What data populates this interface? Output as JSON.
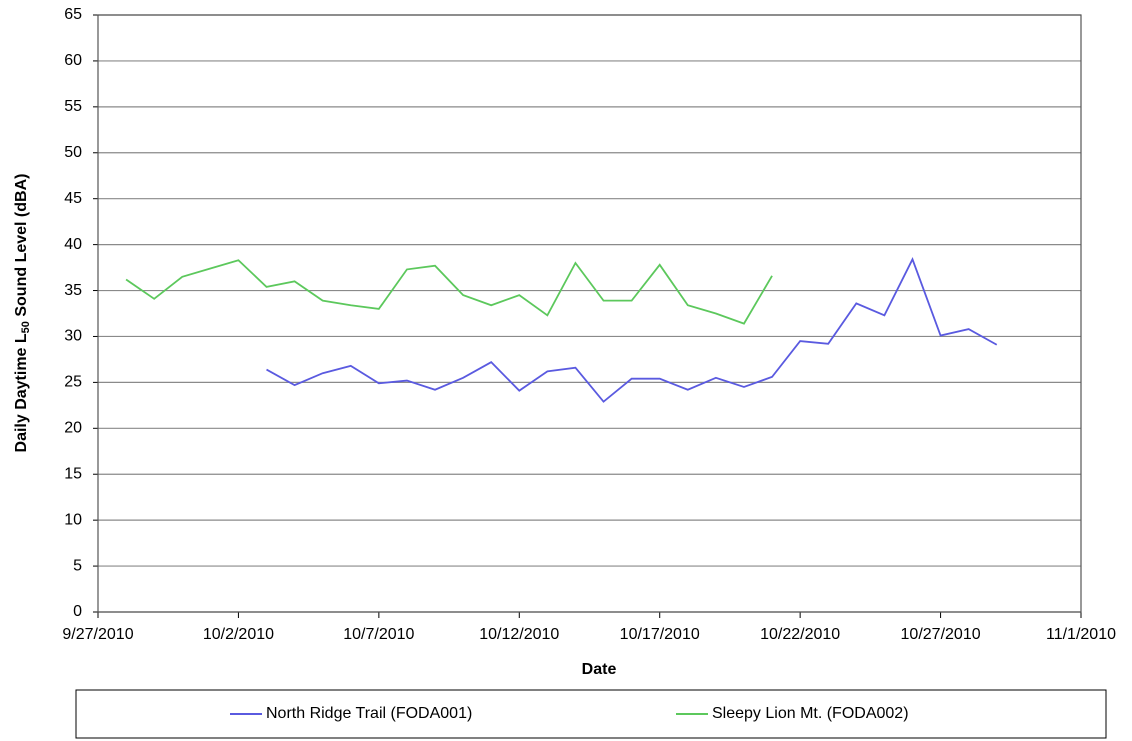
{
  "chart_data": {
    "type": "line",
    "x_label": "Date",
    "y_label_parts": [
      "Daily Daytime L",
      "50",
      " Sound Level (dBA)"
    ],
    "xlim": [
      "9/27/2010",
      "11/1/2010"
    ],
    "xticks": [
      "9/27/2010",
      "10/2/2010",
      "10/7/2010",
      "10/12/2010",
      "10/17/2010",
      "10/22/2010",
      "10/27/2010",
      "11/1/2010"
    ],
    "ylim": [
      0,
      65
    ],
    "yticks": [
      0,
      5,
      10,
      15,
      20,
      25,
      30,
      35,
      40,
      45,
      50,
      55,
      60,
      65
    ],
    "grid": true,
    "legend": "bottom",
    "series": [
      {
        "name": "North Ridge Trail (FODA001)",
        "color": "#5a5ae0",
        "x": [
          "10/3/2010",
          "10/4/2010",
          "10/5/2010",
          "10/6/2010",
          "10/7/2010",
          "10/8/2010",
          "10/9/2010",
          "10/10/2010",
          "10/11/2010",
          "10/12/2010",
          "10/13/2010",
          "10/14/2010",
          "10/15/2010",
          "10/16/2010",
          "10/17/2010",
          "10/18/2010",
          "10/19/2010",
          "10/20/2010",
          "10/21/2010",
          "10/22/2010",
          "10/23/2010",
          "10/24/2010",
          "10/25/2010",
          "10/26/2010",
          "10/27/2010",
          "10/28/2010",
          "10/29/2010"
        ],
        "values": [
          26.4,
          24.7,
          26.0,
          26.8,
          24.9,
          25.2,
          24.2,
          25.5,
          27.2,
          24.1,
          26.2,
          26.6,
          22.9,
          25.4,
          25.4,
          24.2,
          25.5,
          24.5,
          25.6,
          29.5,
          29.2,
          33.6,
          32.3,
          38.4,
          30.1,
          30.8,
          29.1
        ]
      },
      {
        "name": "Sleepy Lion Mt. (FODA002)",
        "color": "#5cc85c",
        "x": [
          "9/28/2010",
          "9/29/2010",
          "9/30/2010",
          "10/1/2010",
          "10/2/2010",
          "10/3/2010",
          "10/4/2010",
          "10/5/2010",
          "10/6/2010",
          "10/7/2010",
          "10/8/2010",
          "10/9/2010",
          "10/10/2010",
          "10/11/2010",
          "10/12/2010",
          "10/13/2010",
          "10/14/2010",
          "10/15/2010",
          "10/16/2010",
          "10/17/2010",
          "10/18/2010",
          "10/19/2010",
          "10/20/2010",
          "10/21/2010"
        ],
        "values": [
          36.2,
          34.1,
          36.5,
          37.4,
          38.3,
          35.4,
          36.0,
          33.9,
          33.4,
          33.0,
          37.3,
          37.7,
          34.5,
          33.4,
          34.5,
          32.3,
          38.0,
          33.9,
          33.9,
          37.8,
          33.4,
          32.5,
          31.4,
          36.6
        ]
      }
    ]
  }
}
